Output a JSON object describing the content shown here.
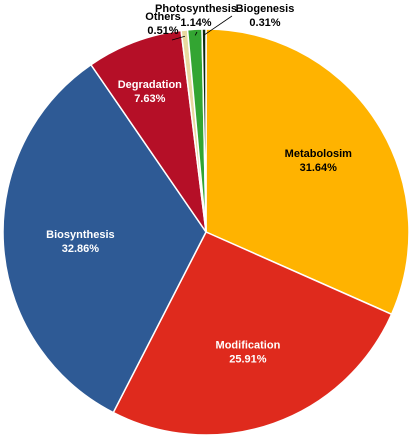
{
  "chart_data": {
    "type": "pie",
    "title": "",
    "slices": [
      {
        "name": "Metabolosim",
        "value": 31.64,
        "label": "31.64%",
        "color": "#FFB300"
      },
      {
        "name": "Modification",
        "value": 25.91,
        "label": "25.91%",
        "color": "#DF2A1D"
      },
      {
        "name": "Biosynthesis",
        "value": 32.86,
        "label": "32.86%",
        "color": "#2E5A95"
      },
      {
        "name": "Degradation",
        "value": 7.63,
        "label": "7.63%",
        "color": "#B50F27"
      },
      {
        "name": "Others",
        "value": 0.51,
        "label": "0.51%",
        "color": "#E8D9A0"
      },
      {
        "name": "Photosynthesis",
        "value": 1.14,
        "label": "1.14%",
        "color": "#33A532"
      },
      {
        "name": "Biogenesis",
        "value": 0.31,
        "label": "0.31%",
        "color": "#0B2A10"
      }
    ],
    "start_angle_deg": 0,
    "direction": "clockwise",
    "legend": "none"
  }
}
